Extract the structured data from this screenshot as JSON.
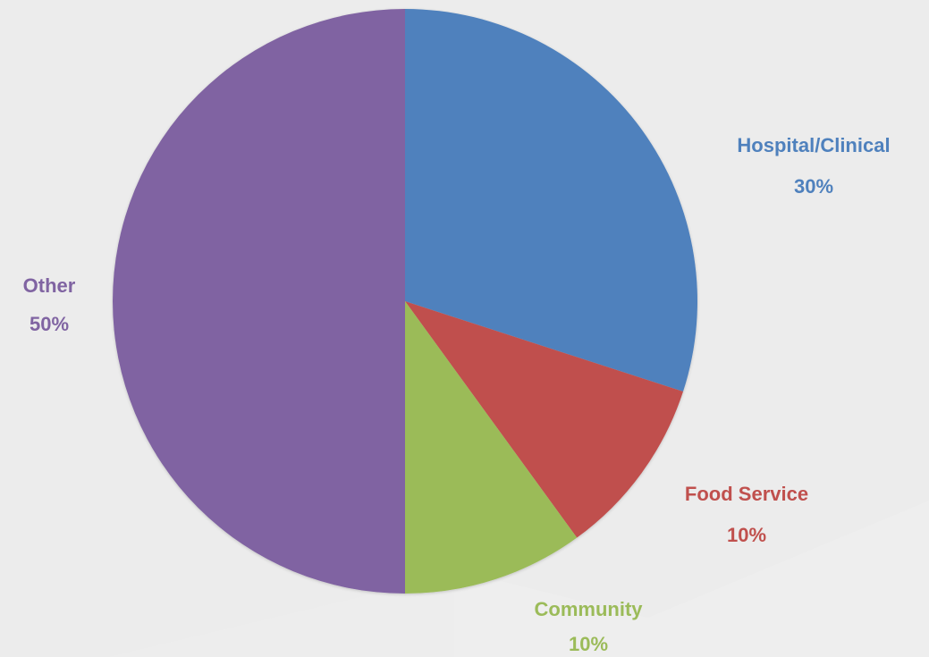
{
  "chart_data": {
    "type": "pie",
    "title": "",
    "start_angle_deg": 0,
    "direction": "clockwise",
    "slices": [
      {
        "label": "Hospital/Clinical",
        "value": 30,
        "pct_label": "30%",
        "color": "#4f81bd"
      },
      {
        "label": "Food Service",
        "value": 10,
        "pct_label": "10%",
        "color": "#c0504d"
      },
      {
        "label": "Community",
        "value": 10,
        "pct_label": "10%",
        "color": "#9bbb59"
      },
      {
        "label": "Other",
        "value": 50,
        "pct_label": "50%",
        "color": "#8064a2"
      }
    ]
  }
}
